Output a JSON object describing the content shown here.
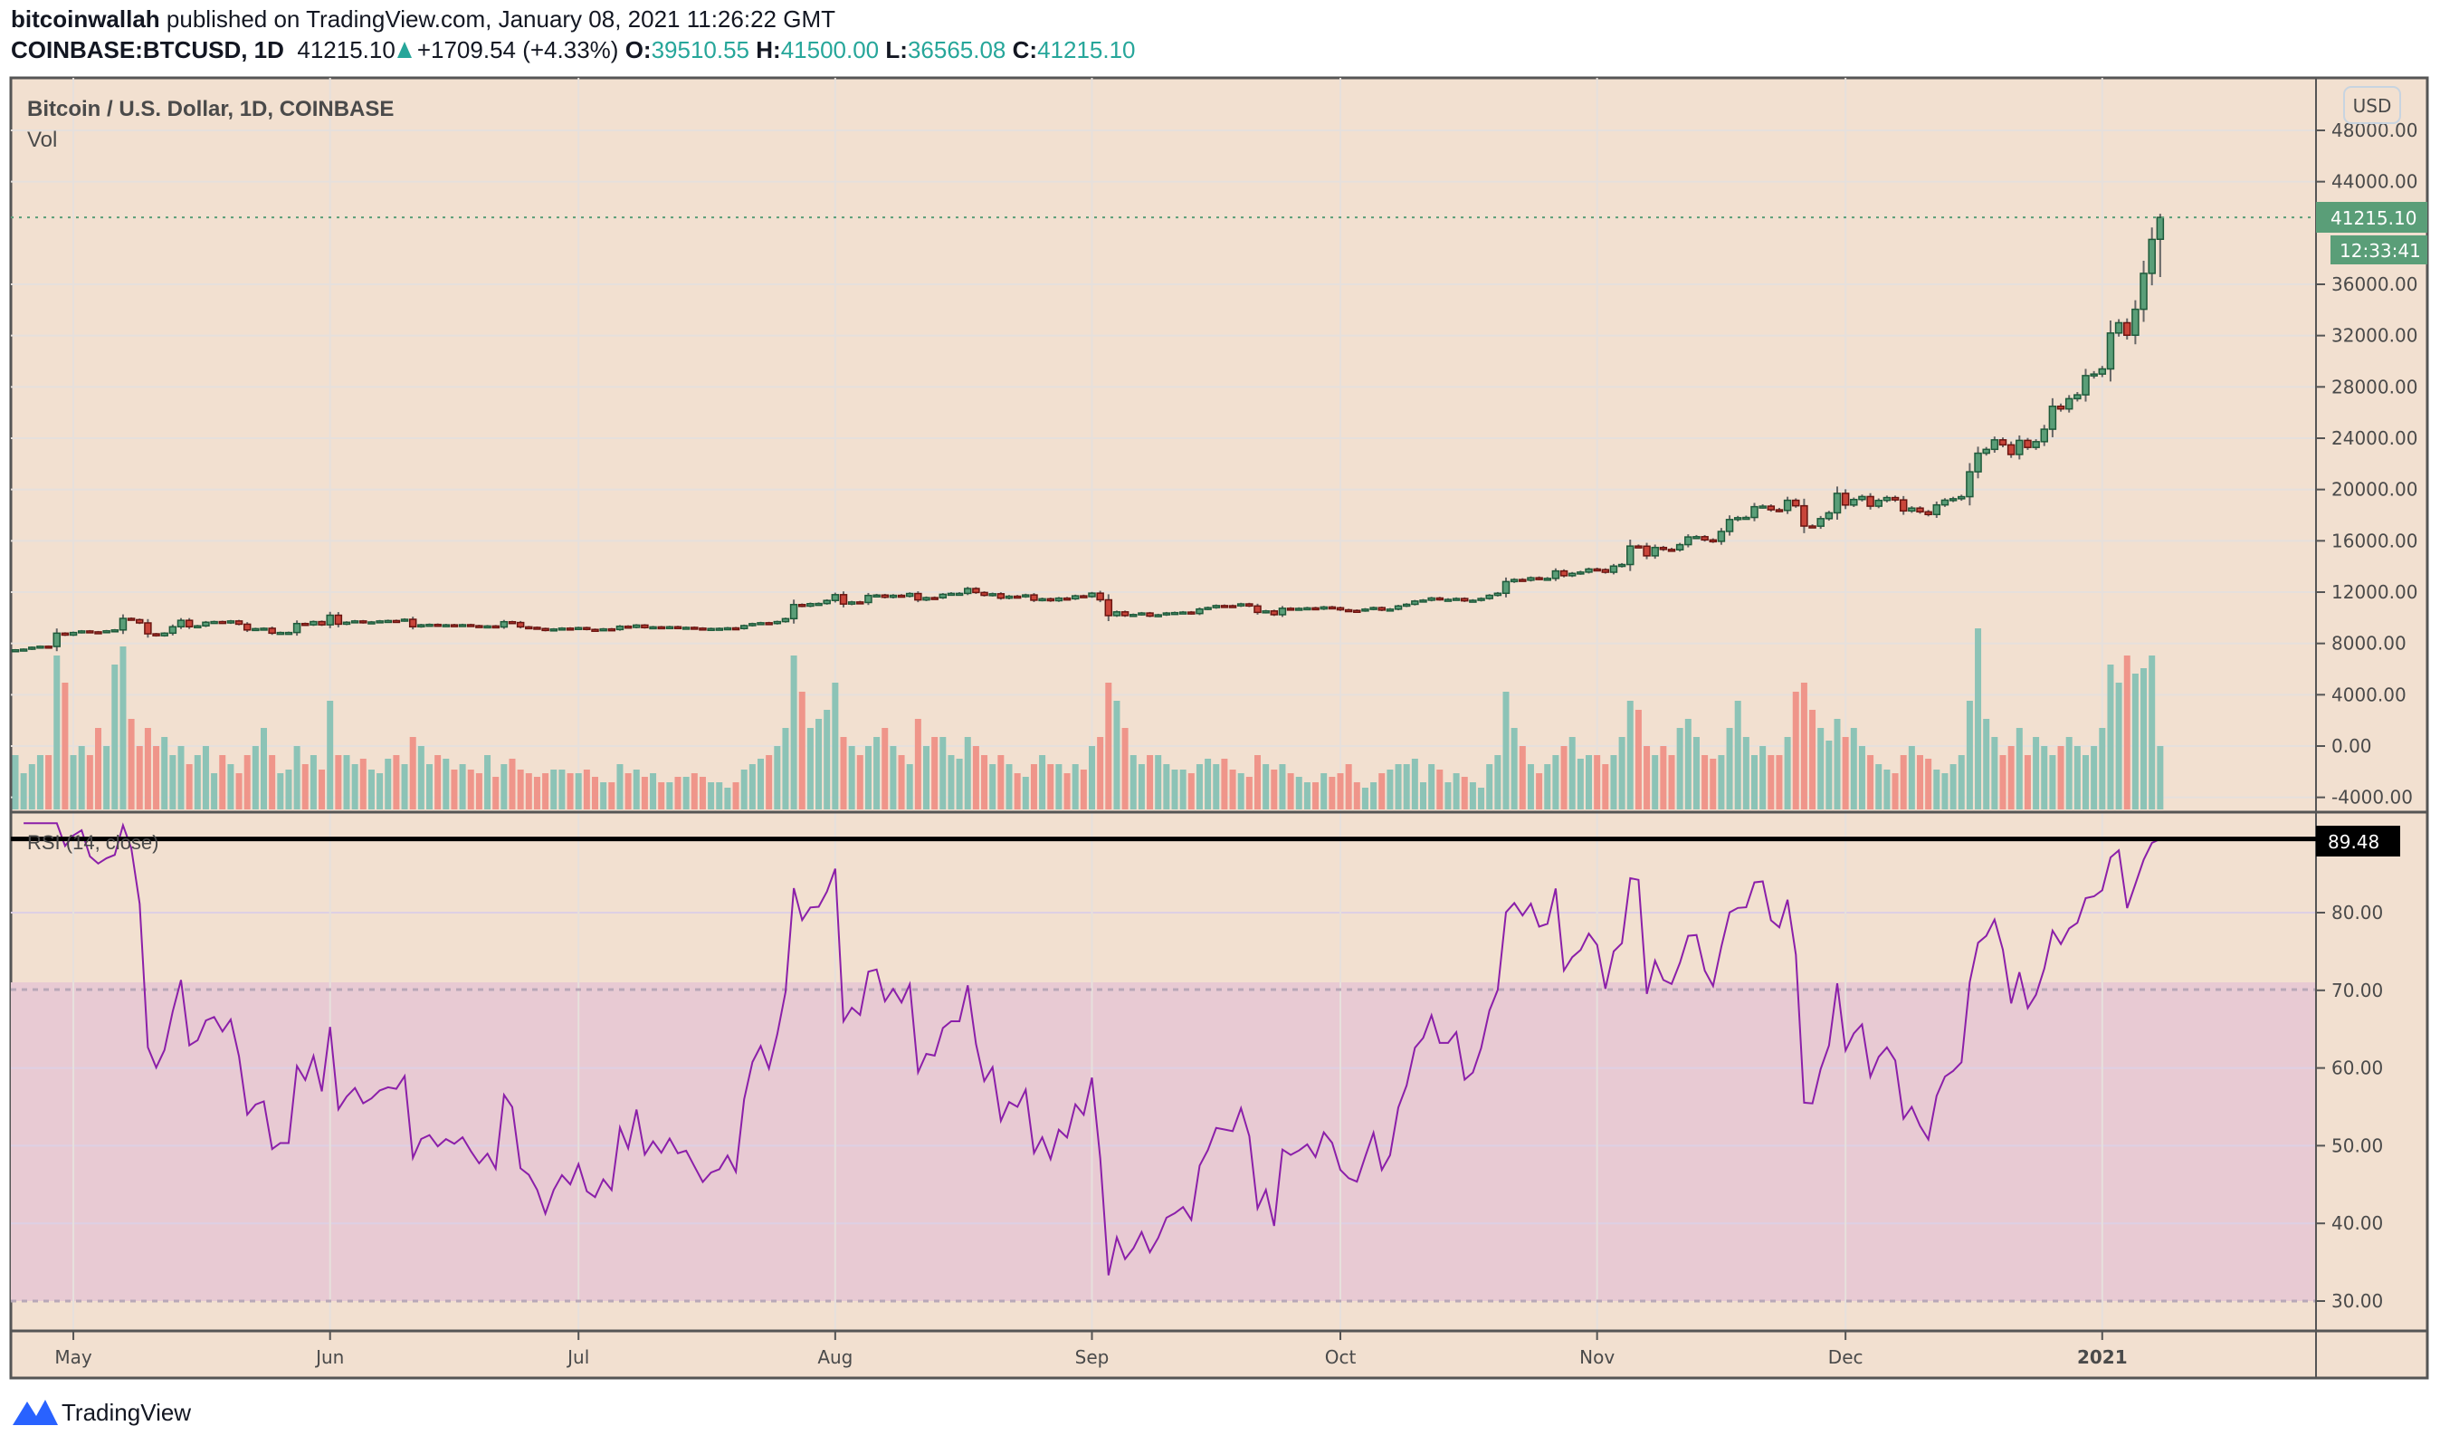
{
  "header": {
    "author": "bitcoinwallah",
    "published": "published on TradingView.com, January 08, 2021 11:26:22 GMT",
    "symbol": "COINBASE:BTCUSD, 1D",
    "last": "41215.10",
    "change": "+1709.54 (+4.33%)",
    "o_label": "O:",
    "o": "39510.55",
    "h_label": "H:",
    "h": "41500.00",
    "l_label": "L:",
    "l": "36565.08",
    "c_label": "C:",
    "c": "41215.10"
  },
  "pane": {
    "title": "Bitcoin / U.S. Dollar, 1D, COINBASE",
    "vol_label": "Vol",
    "currency": "USD",
    "last_price_label": "41215.10",
    "countdown": "12:33:41",
    "rsi_title": "RSI (14, close)",
    "rsi_value_label": "89.48"
  },
  "footer": {
    "brand": "TradingView"
  },
  "colors": {
    "background": "#f2e0d0",
    "up": "#5a9e78",
    "down": "#c9453a",
    "vol_up": "#8cc3b6",
    "vol_down": "#ef958a",
    "rsi_line": "#8b1fa9",
    "rsi_band": "#e8cad3",
    "accent": "#26a69a"
  },
  "chart_data": [
    {
      "type": "candlestick",
      "start_date": "2020-04-24",
      "interval": "1D",
      "y_axis_ticks": [
        "48000.00",
        "44000.00",
        "36000.00",
        "32000.00",
        "28000.00",
        "24000.00",
        "20000.00",
        "16000.00",
        "12000.00",
        "8000.00",
        "4000.00",
        "0.00",
        "-4000.00"
      ],
      "ylim": [
        -5000,
        50000
      ],
      "x_axis_ticks": [
        {
          "label": "May",
          "date": "2020-05-01"
        },
        {
          "label": "Jun",
          "date": "2020-06-01"
        },
        {
          "label": "Jul",
          "date": "2020-07-01"
        },
        {
          "label": "Aug",
          "date": "2020-08-01"
        },
        {
          "label": "Sep",
          "date": "2020-09-01"
        },
        {
          "label": "Oct",
          "date": "2020-10-01"
        },
        {
          "label": "Nov",
          "date": "2020-11-01"
        },
        {
          "label": "Dec",
          "date": "2020-12-01"
        },
        {
          "label": "2021",
          "date": "2021-01-01"
        }
      ],
      "last_candle": {
        "open": 39510.55,
        "high": 41500.0,
        "low": 36565.08,
        "close": 41215.1
      },
      "close": [
        7500,
        7550,
        7700,
        7780,
        7760,
        8800,
        8650,
        8850,
        8970,
        8900,
        8880,
        8980,
        9050,
        9950,
        9850,
        9600,
        8750,
        8600,
        8800,
        9300,
        9800,
        9300,
        9370,
        9650,
        9700,
        9600,
        9750,
        9500,
        9050,
        9150,
        9180,
        8800,
        8850,
        8850,
        9550,
        9450,
        9700,
        9450,
        10200,
        9500,
        9650,
        9750,
        9620,
        9670,
        9750,
        9780,
        9770,
        9880,
        9300,
        9450,
        9480,
        9400,
        9450,
        9420,
        9460,
        9380,
        9310,
        9360,
        9280,
        9690,
        9630,
        9290,
        9250,
        9160,
        9010,
        9120,
        9190,
        9140,
        9230,
        9090,
        9060,
        9130,
        9080,
        9340,
        9250,
        9430,
        9230,
        9290,
        9240,
        9300,
        9240,
        9250,
        9190,
        9130,
        9160,
        9170,
        9210,
        9160,
        9390,
        9540,
        9610,
        9550,
        9700,
        9930,
        11030,
        10910,
        11100,
        11110,
        11350,
        11800,
        11070,
        11230,
        11190,
        11740,
        11770,
        11600,
        11750,
        11680,
        11890,
        11390,
        11570,
        11560,
        11830,
        11900,
        11900,
        12280,
        11970,
        11750,
        11870,
        11530,
        11680,
        11650,
        11780,
        11370,
        11480,
        11330,
        11530,
        11480,
        11710,
        11650,
        11920,
        11400,
        10170,
        10460,
        10170,
        10250,
        10370,
        10130,
        10230,
        10370,
        10400,
        10440,
        10330,
        10680,
        10790,
        10950,
        10940,
        10930,
        11080,
        10920,
        10420,
        10530,
        10240,
        10740,
        10700,
        10730,
        10770,
        10690,
        10840,
        10780,
        10620,
        10570,
        10550,
        10670,
        10790,
        10600,
        10670,
        10920,
        11050,
        11300,
        11370,
        11540,
        11430,
        11430,
        11500,
        11320,
        11360,
        11500,
        11750,
        11910,
        12820,
        12980,
        12930,
        13120,
        13030,
        13070,
        13650,
        13280,
        13460,
        13560,
        13800,
        13750,
        13550,
        14030,
        14150,
        15590,
        15580,
        14830,
        15480,
        15330,
        15300,
        15700,
        16300,
        16320,
        16070,
        15960,
        16730,
        17660,
        17800,
        17820,
        18660,
        18700,
        18420,
        18370,
        19160,
        18730,
        17150,
        17140,
        17730,
        18180,
        19700,
        18790,
        19220,
        19450,
        18700,
        19150,
        19370,
        19190,
        18330,
        18550,
        18260,
        18050,
        18800,
        19170,
        19280,
        19440,
        21380,
        22830,
        23130,
        23870,
        23480,
        22730,
        23830,
        23280,
        23730,
        24700,
        26490,
        26280,
        27080,
        27380,
        28880,
        29000,
        29400,
        32200,
        33000,
        32030,
        34050,
        36850,
        39500,
        41215.1
      ],
      "volume_relative": [
        30,
        20,
        25,
        30,
        30,
        85,
        70,
        30,
        35,
        30,
        45,
        35,
        80,
        90,
        50,
        35,
        45,
        35,
        40,
        30,
        35,
        25,
        30,
        35,
        20,
        30,
        25,
        20,
        30,
        35,
        45,
        30,
        20,
        22,
        35,
        25,
        30,
        22,
        60,
        30,
        30,
        25,
        28,
        22,
        20,
        28,
        30,
        25,
        40,
        35,
        25,
        30,
        28,
        22,
        25,
        22,
        20,
        30,
        18,
        25,
        28,
        22,
        20,
        18,
        20,
        22,
        22,
        20,
        20,
        22,
        18,
        15,
        15,
        25,
        20,
        22,
        18,
        20,
        15,
        15,
        18,
        18,
        20,
        18,
        15,
        15,
        12,
        15,
        22,
        25,
        28,
        30,
        35,
        45,
        85,
        65,
        45,
        50,
        55,
        70,
        40,
        35,
        30,
        35,
        40,
        45,
        35,
        30,
        25,
        50,
        35,
        40,
        40,
        30,
        28,
        40,
        35,
        30,
        25,
        30,
        25,
        20,
        18,
        25,
        30,
        25,
        25,
        20,
        25,
        22,
        35,
        40,
        70,
        60,
        45,
        30,
        25,
        30,
        30,
        25,
        22,
        22,
        20,
        25,
        28,
        25,
        28,
        22,
        20,
        18,
        30,
        25,
        22,
        25,
        20,
        18,
        15,
        15,
        20,
        18,
        20,
        25,
        15,
        12,
        15,
        20,
        22,
        25,
        25,
        28,
        15,
        25,
        22,
        15,
        20,
        18,
        15,
        12,
        25,
        30,
        65,
        45,
        35,
        25,
        20,
        25,
        30,
        35,
        40,
        28,
        30,
        30,
        25,
        30,
        40,
        60,
        55,
        35,
        30,
        35,
        30,
        45,
        50,
        40,
        30,
        28,
        30,
        45,
        60,
        40,
        30,
        35,
        30,
        30,
        40,
        65,
        70,
        55,
        45,
        38,
        50,
        40,
        45,
        35,
        30,
        25,
        22,
        20,
        30,
        35,
        30,
        28,
        22,
        20,
        25,
        30,
        60,
        100,
        50,
        40,
        30,
        35,
        45,
        30,
        40,
        35,
        30,
        35,
        40,
        35,
        30,
        35,
        45,
        80,
        70,
        85,
        75,
        78,
        85,
        35
      ]
    },
    {
      "type": "line",
      "name": "RSI (14, close)",
      "period": 14,
      "y_axis_ticks": [
        "80.00",
        "70.00",
        "60.00",
        "50.00",
        "40.00",
        "30.00"
      ],
      "ylim": [
        26.5,
        91.5
      ],
      "overbought": 70,
      "oversold": 30,
      "last_value": 89.48
    }
  ]
}
